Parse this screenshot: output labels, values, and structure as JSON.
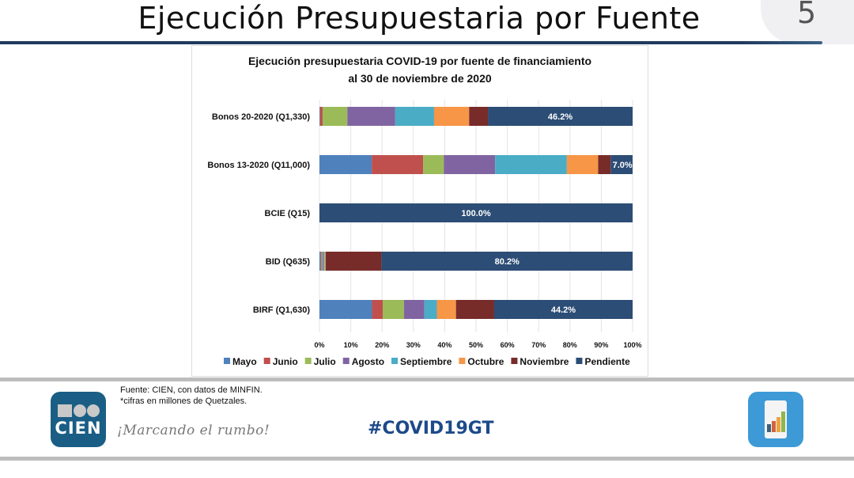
{
  "slide": {
    "title": "Ejecución Presupuestaria por Fuente",
    "page_number": "5"
  },
  "footer": {
    "source_line1": "Fuente: CIEN, con datos de MINFIN.",
    "source_line2": "*cifras en millones de Quetzales.",
    "logo_text": "CIEN",
    "slogan": "¡Marcando el rumbo!",
    "hashtag": "#COVID19GT",
    "app_icon": "bar-chart-phone-icon"
  },
  "colors": {
    "Mayo": "#4f81bd",
    "Junio": "#c0504d",
    "Julio": "#9bbb59",
    "Agosto": "#8064a2",
    "Septiembre": "#4bacc6",
    "Octubre": "#f79646",
    "Noviembre": "#772c2a",
    "Pendiente": "#2c4d75"
  },
  "chart_data": {
    "type": "bar",
    "orientation": "horizontal",
    "stacked": "100%",
    "title": "Ejecución presupuestaria COVID-19 por fuente de financiamiento",
    "subtitle": "al 30 de noviembre de 2020",
    "xlabel": "",
    "ylabel": "",
    "xlim": [
      0,
      100
    ],
    "x_ticks": [
      "0%",
      "10%",
      "20%",
      "30%",
      "40%",
      "50%",
      "60%",
      "70%",
      "80%",
      "90%",
      "100%"
    ],
    "grid": true,
    "legend_position": "bottom",
    "categories": [
      "Bonos 20-2020 (Q1,330)",
      "Bonos 13-2020 (Q11,000)",
      "BCIE (Q15)",
      "BID (Q635)",
      "BIRF (Q1,630)"
    ],
    "series": [
      {
        "name": "Mayo",
        "values": [
          0.2,
          16.7,
          0,
          0.4,
          16.8
        ]
      },
      {
        "name": "Junio",
        "values": [
          0.8,
          16.4,
          0,
          0.3,
          3.4
        ]
      },
      {
        "name": "Julio",
        "values": [
          7.9,
          6.6,
          0,
          0.3,
          6.8
        ]
      },
      {
        "name": "Agosto",
        "values": [
          15.3,
          16.4,
          0,
          0.3,
          6.5
        ]
      },
      {
        "name": "Septiembre",
        "values": [
          12.4,
          22.9,
          0,
          0.4,
          4.0
        ]
      },
      {
        "name": "Octubre",
        "values": [
          11.2,
          10.0,
          0,
          0.3,
          6.1
        ]
      },
      {
        "name": "Noviembre",
        "values": [
          6.0,
          4.0,
          0,
          17.8,
          12.2
        ]
      },
      {
        "name": "Pendiente",
        "values": [
          46.2,
          7.0,
          100.0,
          80.2,
          44.2
        ]
      }
    ],
    "data_labels": [
      "46.2%",
      "7.0%",
      "100.0%",
      "80.2%",
      "44.2%"
    ]
  }
}
